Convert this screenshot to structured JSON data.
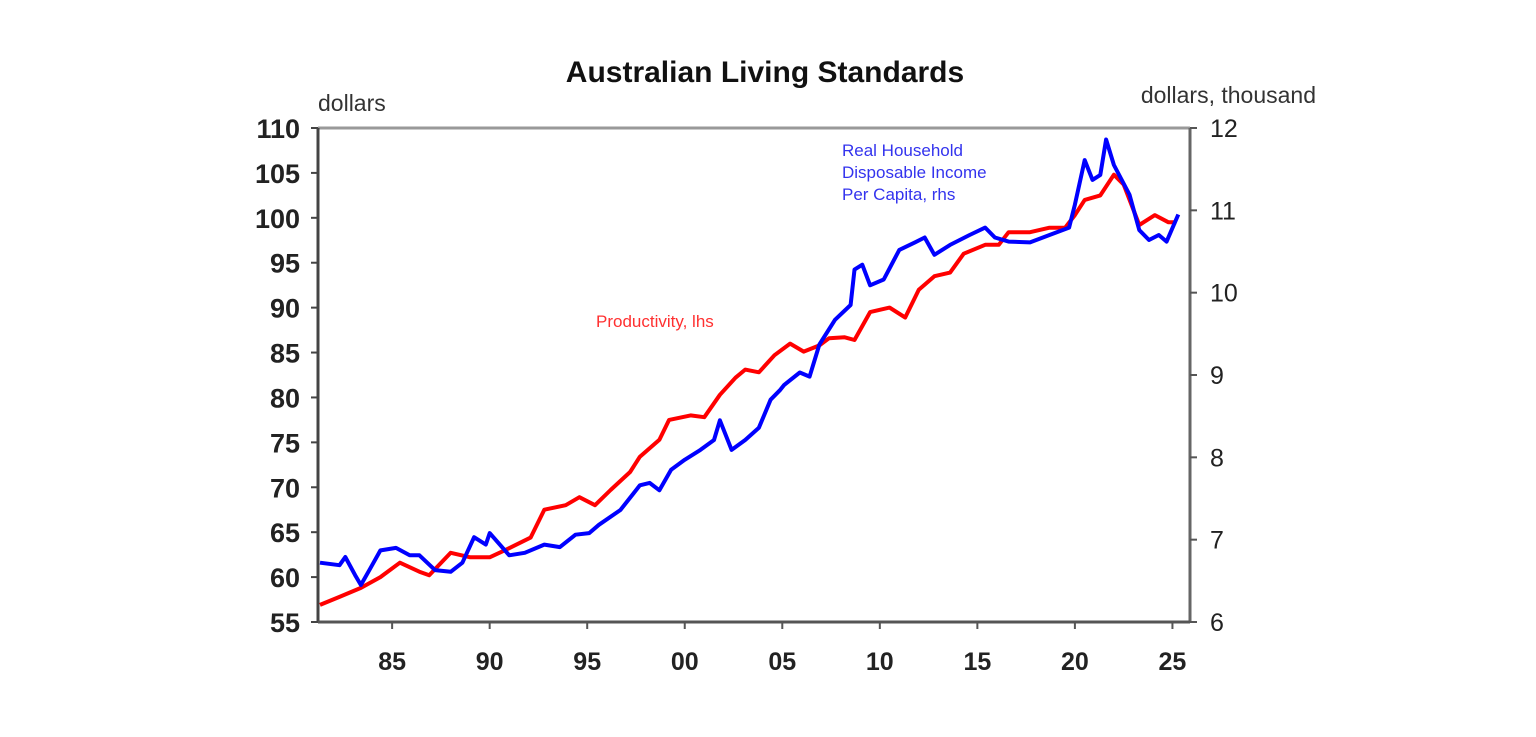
{
  "chart_data": {
    "type": "line",
    "title": "Australian Living Standards",
    "left_axis": {
      "label": "dollars",
      "ylim": [
        55,
        110
      ],
      "ticks": [
        55,
        60,
        65,
        70,
        75,
        80,
        85,
        90,
        95,
        100,
        105,
        110
      ]
    },
    "right_axis": {
      "label": "dollars, thousand",
      "ylim": [
        6,
        12
      ],
      "ticks": [
        6,
        7,
        8,
        9,
        10,
        11,
        12
      ]
    },
    "x_axis": {
      "xlim": [
        1981.2,
        2025.9
      ],
      "ticks": [
        1985,
        1990,
        1995,
        2000,
        2005,
        2010,
        2015,
        2020,
        2025
      ],
      "tick_labels": [
        "85",
        "90",
        "95",
        "00",
        "05",
        "10",
        "15",
        "20",
        "25"
      ]
    },
    "grid": false,
    "series": [
      {
        "name": "Productivity, lhs",
        "axis": "left",
        "color": "#ff0000",
        "points": [
          [
            1981.3,
            56.9
          ],
          [
            1982.3,
            57.8
          ],
          [
            1983.4,
            58.8
          ],
          [
            1984.4,
            60.0
          ],
          [
            1985.4,
            61.6
          ],
          [
            1986.4,
            60.6
          ],
          [
            1986.9,
            60.2
          ],
          [
            1988.0,
            62.7
          ],
          [
            1989.0,
            62.2
          ],
          [
            1990.0,
            62.2
          ],
          [
            1990.8,
            63.0
          ],
          [
            1992.1,
            64.4
          ],
          [
            1992.8,
            67.5
          ],
          [
            1993.9,
            68.0
          ],
          [
            1994.6,
            68.9
          ],
          [
            1995.4,
            68.0
          ],
          [
            1996.2,
            69.7
          ],
          [
            1997.2,
            71.7
          ],
          [
            1997.7,
            73.4
          ],
          [
            1998.7,
            75.3
          ],
          [
            1999.2,
            77.5
          ],
          [
            2000.3,
            78.0
          ],
          [
            2001.0,
            77.8
          ],
          [
            2001.8,
            80.3
          ],
          [
            2002.6,
            82.2
          ],
          [
            2003.1,
            83.1
          ],
          [
            2003.8,
            82.8
          ],
          [
            2004.6,
            84.7
          ],
          [
            2005.4,
            86.0
          ],
          [
            2006.1,
            85.1
          ],
          [
            2006.9,
            85.8
          ],
          [
            2007.4,
            86.6
          ],
          [
            2008.2,
            86.7
          ],
          [
            2008.7,
            86.4
          ],
          [
            2009.5,
            89.5
          ],
          [
            2010.5,
            90.0
          ],
          [
            2011.3,
            88.9
          ],
          [
            2012.0,
            92.0
          ],
          [
            2012.8,
            93.5
          ],
          [
            2013.6,
            93.9
          ],
          [
            2014.3,
            96.0
          ],
          [
            2015.4,
            97.0
          ],
          [
            2016.1,
            97.0
          ],
          [
            2016.6,
            98.4
          ],
          [
            2017.7,
            98.4
          ],
          [
            2018.7,
            98.9
          ],
          [
            2019.5,
            98.9
          ],
          [
            2020.0,
            100.3
          ],
          [
            2020.5,
            102.0
          ],
          [
            2021.3,
            102.5
          ],
          [
            2022.0,
            104.8
          ],
          [
            2022.5,
            103.7
          ],
          [
            2023.3,
            99.2
          ],
          [
            2024.1,
            100.3
          ],
          [
            2024.8,
            99.5
          ],
          [
            2025.2,
            99.5
          ]
        ]
      },
      {
        "name": "Real Household Disposable Income Per Capita, rhs",
        "axis": "right",
        "color": "#0000ff",
        "points": [
          [
            1981.3,
            6.72
          ],
          [
            1982.3,
            6.69
          ],
          [
            1982.6,
            6.79
          ],
          [
            1983.1,
            6.57
          ],
          [
            1983.4,
            6.45
          ],
          [
            1983.9,
            6.66
          ],
          [
            1984.4,
            6.87
          ],
          [
            1985.2,
            6.9
          ],
          [
            1985.9,
            6.81
          ],
          [
            1986.4,
            6.81
          ],
          [
            1987.2,
            6.63
          ],
          [
            1988.0,
            6.61
          ],
          [
            1988.6,
            6.72
          ],
          [
            1989.2,
            7.03
          ],
          [
            1989.8,
            6.94
          ],
          [
            1990.0,
            7.08
          ],
          [
            1991.0,
            6.81
          ],
          [
            1991.8,
            6.84
          ],
          [
            1992.8,
            6.94
          ],
          [
            1993.6,
            6.91
          ],
          [
            1994.4,
            7.06
          ],
          [
            1995.1,
            7.08
          ],
          [
            1995.6,
            7.18
          ],
          [
            1996.7,
            7.36
          ],
          [
            1997.7,
            7.66
          ],
          [
            1998.2,
            7.69
          ],
          [
            1998.7,
            7.6
          ],
          [
            1999.3,
            7.85
          ],
          [
            2000.0,
            7.97
          ],
          [
            2000.8,
            8.09
          ],
          [
            2001.5,
            8.21
          ],
          [
            2001.8,
            8.45
          ],
          [
            2002.4,
            8.09
          ],
          [
            2003.1,
            8.21
          ],
          [
            2003.8,
            8.36
          ],
          [
            2004.4,
            8.7
          ],
          [
            2004.9,
            8.82
          ],
          [
            2005.1,
            8.88
          ],
          [
            2005.9,
            9.03
          ],
          [
            2006.4,
            8.98
          ],
          [
            2006.9,
            9.37
          ],
          [
            2007.7,
            9.67
          ],
          [
            2008.5,
            9.85
          ],
          [
            2008.7,
            10.28
          ],
          [
            2009.1,
            10.34
          ],
          [
            2009.5,
            10.09
          ],
          [
            2010.2,
            10.16
          ],
          [
            2011.0,
            10.52
          ],
          [
            2011.8,
            10.61
          ],
          [
            2012.3,
            10.67
          ],
          [
            2012.8,
            10.46
          ],
          [
            2013.6,
            10.58
          ],
          [
            2014.6,
            10.7
          ],
          [
            2015.4,
            10.79
          ],
          [
            2015.9,
            10.67
          ],
          [
            2016.6,
            10.62
          ],
          [
            2017.7,
            10.61
          ],
          [
            2018.7,
            10.7
          ],
          [
            2019.7,
            10.79
          ],
          [
            2020.0,
            11.07
          ],
          [
            2020.5,
            11.61
          ],
          [
            2020.9,
            11.37
          ],
          [
            2021.3,
            11.43
          ],
          [
            2021.6,
            11.86
          ],
          [
            2022.0,
            11.55
          ],
          [
            2022.8,
            11.19
          ],
          [
            2023.3,
            10.76
          ],
          [
            2023.8,
            10.64
          ],
          [
            2024.3,
            10.7
          ],
          [
            2024.7,
            10.62
          ],
          [
            2025.3,
            10.95
          ]
        ]
      }
    ],
    "annotations": {
      "productivity": "Productivity, lhs",
      "income_lines": [
        "Real Household",
        "Disposable Income",
        "Per Capita, rhs"
      ]
    }
  }
}
